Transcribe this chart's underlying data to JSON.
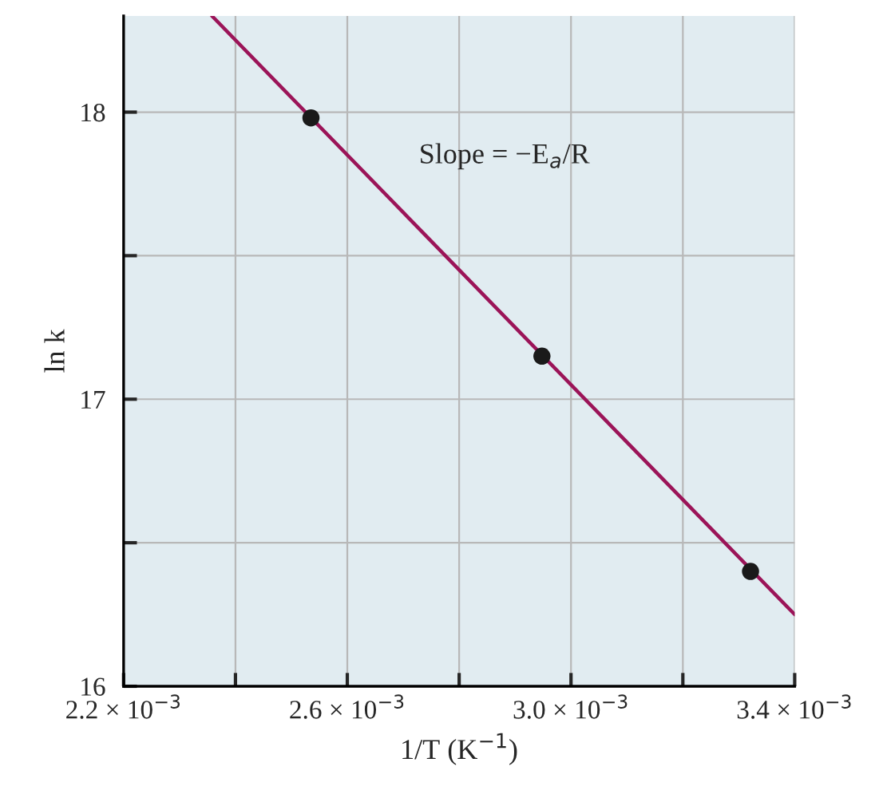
{
  "chart_data": {
    "type": "scatter",
    "xlabel": "1/T (K$^{−1}$)",
    "ylabel": "ln k",
    "annotations": [
      "Slope = −E$_{a}$/R"
    ],
    "series": [
      {
        "type": "line",
        "color": "#9b1458",
        "x": [
          0.002358,
          0.0034
        ],
        "values": [
          18.335,
          16.25
        ],
        "marker": "none"
      },
      {
        "color": "#1a1a1a",
        "x": [
          0.002535,
          0.002948,
          0.003321
        ],
        "values": [
          17.98,
          17.15,
          16.4
        ],
        "marker": "circle"
      }
    ],
    "xlim": [
      0.0022,
      0.0034
    ],
    "ylim": [
      16,
      18.335
    ],
    "xticks": [
      {
        "value": 0.0022,
        "label": "2.2 × 10$^{−3}$"
      },
      {
        "value": 0.0024,
        "label": null
      },
      {
        "value": 0.0026,
        "label": "2.6 × 10$^{−3}$"
      },
      {
        "value": 0.0028,
        "label": null
      },
      {
        "value": 0.003,
        "label": "3.0 × 10$^{−3}$"
      },
      {
        "value": 0.0032,
        "label": null
      },
      {
        "value": 0.0034,
        "label": "3.4 × 10$^{−3}$"
      }
    ],
    "yticks": [
      16,
      {
        "value": 16.5,
        "label": null
      },
      17,
      {
        "value": 17.5,
        "label": null
      },
      18
    ],
    "grid": true
  }
}
